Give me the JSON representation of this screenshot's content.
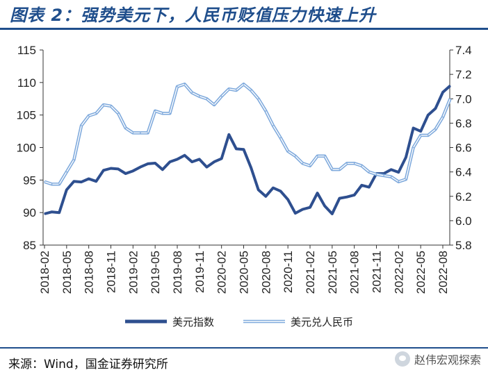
{
  "title": "图表 2：强势美元下，人民币贬值压力快速上升",
  "source": "来源：Wind，国金证券研究所",
  "watermark": "赵伟宏观探索",
  "chart_data": {
    "type": "line",
    "x_ticks": [
      "2018-02",
      "2018-05",
      "2018-08",
      "2018-11",
      "2019-02",
      "2019-05",
      "2019-08",
      "2019-11",
      "2020-02",
      "2020-05",
      "2020-08",
      "2020-11",
      "2021-02",
      "2021-05",
      "2021-08",
      "2021-11",
      "2022-02",
      "2022-05",
      "2022-08"
    ],
    "left_axis": {
      "min": 85,
      "max": 115,
      "ticks": [
        "85",
        "90",
        "95",
        "100",
        "105",
        "110",
        "115"
      ]
    },
    "right_axis": {
      "min": 5.8,
      "max": 7.4,
      "ticks": [
        "5.8",
        "6.0",
        "6.2",
        "6.4",
        "6.6",
        "6.8",
        "7.0",
        "7.2",
        "7.4"
      ]
    },
    "series": [
      {
        "name": "美元指数",
        "axis": "left",
        "color": "#2e4f8f",
        "x": [
          "2018-02",
          "2018-03",
          "2018-04",
          "2018-05",
          "2018-06",
          "2018-07",
          "2018-08",
          "2018-09",
          "2018-10",
          "2018-11",
          "2018-12",
          "2019-01",
          "2019-02",
          "2019-03",
          "2019-04",
          "2019-05",
          "2019-06",
          "2019-07",
          "2019-08",
          "2019-09",
          "2019-10",
          "2019-11",
          "2019-12",
          "2020-01",
          "2020-02",
          "2020-03",
          "2020-04",
          "2020-05",
          "2020-06",
          "2020-07",
          "2020-08",
          "2020-09",
          "2020-10",
          "2020-11",
          "2020-12",
          "2021-01",
          "2021-02",
          "2021-03",
          "2021-04",
          "2021-05",
          "2021-06",
          "2021-07",
          "2021-08",
          "2021-09",
          "2021-10",
          "2021-11",
          "2021-12",
          "2022-01",
          "2022-02",
          "2022-03",
          "2022-04",
          "2022-05",
          "2022-06",
          "2022-07",
          "2022-08",
          "2022-09"
        ],
        "values": [
          89.8,
          90.1,
          90.0,
          93.5,
          94.8,
          94.7,
          95.2,
          94.8,
          96.5,
          96.8,
          96.7,
          96.0,
          96.4,
          97.0,
          97.5,
          97.6,
          96.6,
          97.8,
          98.2,
          98.8,
          97.8,
          98.2,
          97.0,
          97.8,
          98.3,
          102.0,
          99.8,
          99.7,
          96.9,
          93.5,
          92.5,
          93.8,
          93.3,
          92.0,
          89.9,
          90.5,
          90.8,
          93.0,
          91.0,
          89.8,
          92.2,
          92.4,
          92.7,
          94.2,
          93.9,
          96.0,
          96.0,
          96.6,
          96.2,
          98.5,
          103.0,
          102.5,
          105.0,
          106.0,
          108.5,
          109.5
        ]
      },
      {
        "name": "美元兑人民币",
        "axis": "right",
        "color": "#7ea9dc",
        "x": [
          "2018-02",
          "2018-03",
          "2018-04",
          "2018-05",
          "2018-06",
          "2018-07",
          "2018-08",
          "2018-09",
          "2018-10",
          "2018-11",
          "2018-12",
          "2019-01",
          "2019-02",
          "2019-03",
          "2019-04",
          "2019-05",
          "2019-06",
          "2019-07",
          "2019-08",
          "2019-09",
          "2019-10",
          "2019-11",
          "2019-12",
          "2020-01",
          "2020-02",
          "2020-03",
          "2020-04",
          "2020-05",
          "2020-06",
          "2020-07",
          "2020-08",
          "2020-09",
          "2020-10",
          "2020-11",
          "2020-12",
          "2021-01",
          "2021-02",
          "2021-03",
          "2021-04",
          "2021-05",
          "2021-06",
          "2021-07",
          "2021-08",
          "2021-09",
          "2021-10",
          "2021-11",
          "2021-12",
          "2022-01",
          "2022-02",
          "2022-03",
          "2022-04",
          "2022-05",
          "2022-06",
          "2022-07",
          "2022-08",
          "2022-09"
        ],
        "values": [
          6.32,
          6.3,
          6.3,
          6.4,
          6.5,
          6.78,
          6.86,
          6.88,
          6.95,
          6.94,
          6.88,
          6.76,
          6.72,
          6.72,
          6.72,
          6.9,
          6.88,
          6.88,
          7.1,
          7.12,
          7.05,
          7.02,
          7.0,
          6.95,
          7.02,
          7.08,
          7.07,
          7.12,
          7.07,
          7.0,
          6.9,
          6.78,
          6.68,
          6.57,
          6.53,
          6.47,
          6.45,
          6.53,
          6.53,
          6.42,
          6.42,
          6.47,
          6.47,
          6.45,
          6.4,
          6.38,
          6.37,
          6.36,
          6.32,
          6.34,
          6.6,
          6.7,
          6.7,
          6.75,
          6.85,
          7.0
        ]
      }
    ]
  }
}
